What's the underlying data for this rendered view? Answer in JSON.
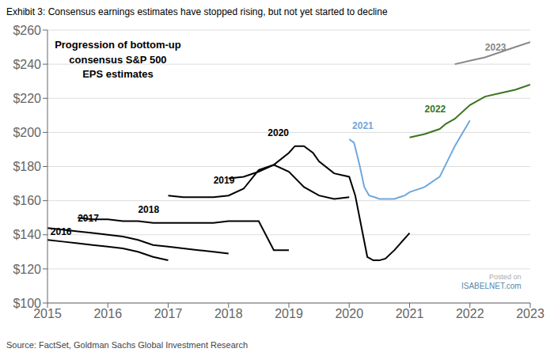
{
  "chart_data": {
    "type": "line",
    "title": "Exhibit 3: Consensus earnings estimates have stopped rising, but not yet started to decline",
    "subtitle": "Progression of bottom-up\nconsensus S&P 500\nEPS estimates",
    "source": "Source: FactSet, Goldman Sachs Global Investment Research",
    "watermark": [
      "Posted on",
      "ISABELNET.com"
    ],
    "xlim": [
      2015.0,
      2023.0
    ],
    "ylim": [
      100,
      260
    ],
    "xticks": [
      2015,
      2016,
      2017,
      2018,
      2019,
      2020,
      2021,
      2022,
      2023
    ],
    "yticks": [
      {
        "value": 100,
        "label": "$100"
      },
      {
        "value": 120,
        "label": "$120"
      },
      {
        "value": 140,
        "label": "$140"
      },
      {
        "value": 160,
        "label": "$160"
      },
      {
        "value": 180,
        "label": "$180"
      },
      {
        "value": 200,
        "label": "$200"
      },
      {
        "value": 220,
        "label": "$220"
      },
      {
        "value": 240,
        "label": "$240"
      },
      {
        "value": 260,
        "label": "$260"
      }
    ],
    "grid": "y",
    "series": [
      {
        "name": "2016",
        "color": "#000000",
        "label_x": 2015.05,
        "label_y": 140,
        "x": [
          2015.0,
          2015.25,
          2015.5,
          2015.75,
          2016.0,
          2016.25,
          2016.5,
          2016.75,
          2017.0
        ],
        "values": [
          137,
          136,
          135,
          134,
          133,
          132,
          130,
          127,
          125
        ]
      },
      {
        "name": "2017",
        "color": "#000000",
        "label_x": 2015.5,
        "label_y": 148,
        "x": [
          2015.0,
          2015.25,
          2015.5,
          2015.75,
          2016.0,
          2016.25,
          2016.5,
          2016.75,
          2017.0,
          2017.25,
          2017.5,
          2017.75,
          2018.0
        ],
        "values": [
          144,
          143,
          142,
          141,
          140,
          139,
          137,
          134,
          133,
          132,
          131,
          130,
          129
        ]
      },
      {
        "name": "2018",
        "color": "#000000",
        "label_x": 2016.5,
        "label_y": 153,
        "x": [
          2015.5,
          2015.75,
          2016.0,
          2016.25,
          2016.5,
          2016.75,
          2017.0,
          2017.25,
          2017.5,
          2017.75,
          2018.0,
          2018.25,
          2018.5,
          2018.75,
          2019.0
        ],
        "values": [
          150,
          149,
          149,
          148,
          148,
          147,
          147,
          147,
          147,
          147,
          148,
          148,
          148,
          131,
          131
        ]
      },
      {
        "name": "2019",
        "color": "#000000",
        "label_x": 2017.75,
        "label_y": 170,
        "x": [
          2017.0,
          2017.25,
          2017.5,
          2017.75,
          2018.0,
          2018.25,
          2018.5,
          2018.75,
          2019.0,
          2019.25,
          2019.5,
          2019.75,
          2020.0
        ],
        "values": [
          163,
          162,
          162,
          162,
          163,
          167,
          178,
          181,
          177,
          168,
          163,
          161,
          162
        ]
      },
      {
        "name": "2020",
        "color": "#000000",
        "label_x": 2018.65,
        "label_y": 198,
        "x": [
          2018.0,
          2018.25,
          2018.5,
          2018.75,
          2019.0,
          2019.1,
          2019.25,
          2019.4,
          2019.5,
          2019.75,
          2020.0,
          2020.1,
          2020.2,
          2020.3,
          2020.4,
          2020.5,
          2020.6,
          2020.75,
          2021.0
        ],
        "values": [
          173,
          174,
          177,
          181,
          188,
          192,
          192,
          188,
          183,
          176,
          174,
          163,
          145,
          127,
          125,
          125,
          126,
          131,
          141
        ]
      },
      {
        "name": "2021",
        "color": "#6fa8dc",
        "label_x": 2020.05,
        "label_y": 202,
        "x": [
          2020.0,
          2020.08,
          2020.17,
          2020.25,
          2020.33,
          2020.42,
          2020.5,
          2020.58,
          2020.67,
          2020.75,
          2020.83,
          2020.92,
          2021.0,
          2021.25,
          2021.5,
          2021.75,
          2022.0
        ],
        "values": [
          196,
          194,
          181,
          168,
          163,
          162,
          161,
          161,
          161,
          161,
          162,
          163,
          165,
          168,
          174,
          192,
          207
        ]
      },
      {
        "name": "2022",
        "color": "#38761d",
        "label_x": 2021.25,
        "label_y": 212,
        "x": [
          2021.0,
          2021.25,
          2021.5,
          2021.6,
          2021.75,
          2022.0,
          2022.25,
          2022.5,
          2022.75,
          2023.0
        ],
        "values": [
          197,
          199,
          202,
          205,
          208,
          216,
          221,
          223,
          225,
          228
        ]
      },
      {
        "name": "2023",
        "color": "#888888",
        "label_x": 2022.25,
        "label_y": 248,
        "x": [
          2021.75,
          2022.0,
          2022.25,
          2022.5,
          2022.75,
          2023.0
        ],
        "values": [
          240,
          242,
          244,
          247,
          250,
          253
        ]
      }
    ]
  }
}
